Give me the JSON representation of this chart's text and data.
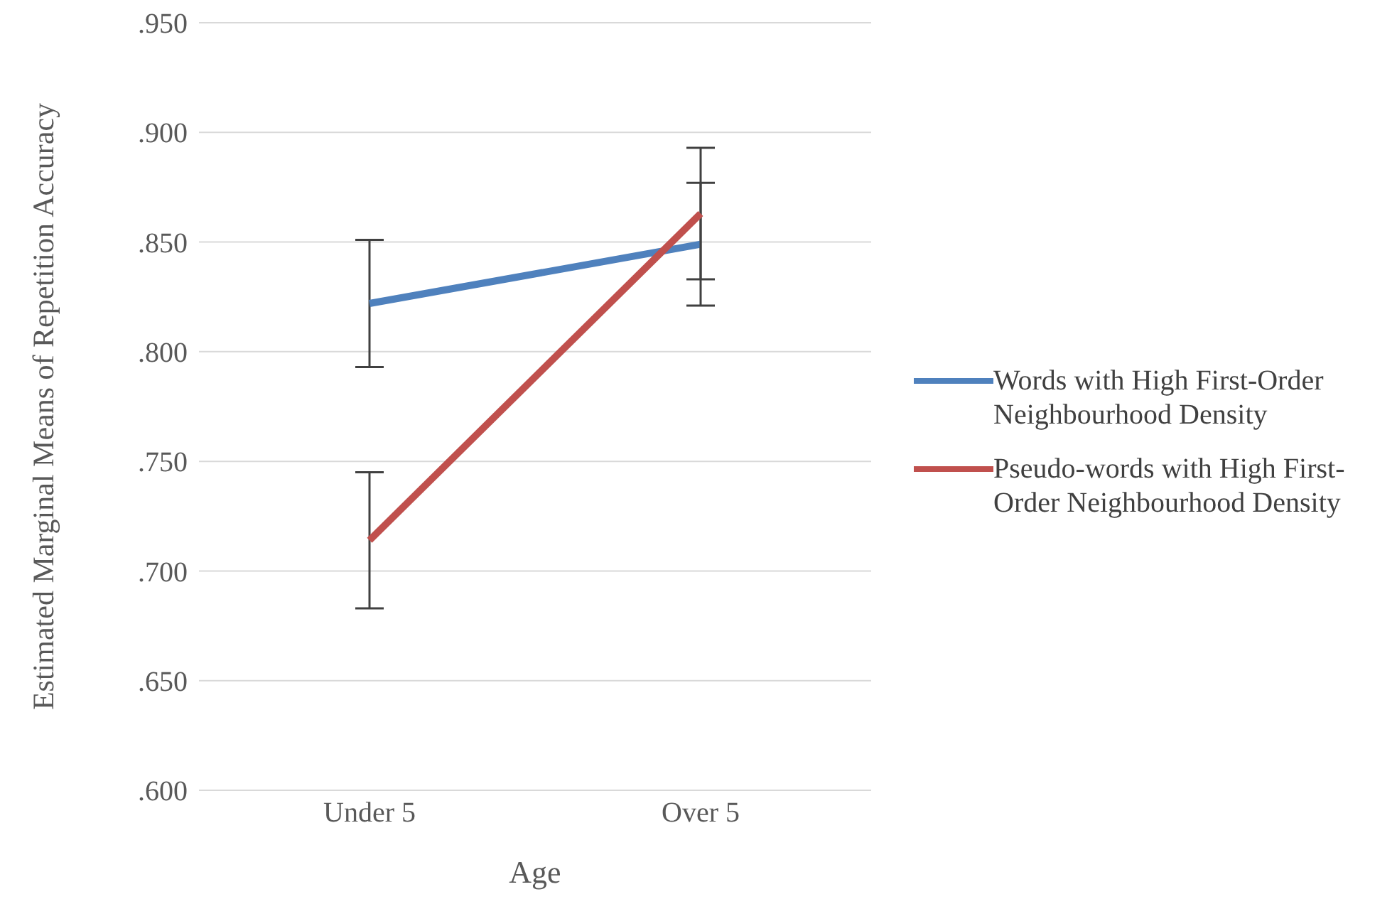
{
  "chart_data": {
    "type": "line",
    "xlabel": "Age",
    "ylabel": "Estimated Marginal Means of Repetition Accuracy",
    "categories": [
      "Under 5",
      "Over 5"
    ],
    "series": [
      {
        "name": "Words with High First-Order Neighbourhood Density",
        "color": "#4f81bd",
        "values": [
          0.822,
          0.849
        ],
        "errors": [
          0.029,
          0.028
        ]
      },
      {
        "name": "Pseudo-words with High First-Order Neighbourhood Density",
        "color": "#c0504d",
        "values": [
          0.714,
          0.863
        ],
        "errors": [
          0.031,
          0.03
        ]
      }
    ],
    "ylim": [
      0.6,
      0.95
    ],
    "yticks": [
      {
        "value": 0.6,
        "label": ".600"
      },
      {
        "value": 0.65,
        "label": ".650"
      },
      {
        "value": 0.7,
        "label": ".700"
      },
      {
        "value": 0.75,
        "label": ".750"
      },
      {
        "value": 0.8,
        "label": ".800"
      },
      {
        "value": 0.85,
        "label": ".850"
      },
      {
        "value": 0.9,
        "label": ".900"
      },
      {
        "value": 0.95,
        "label": ".950"
      }
    ],
    "grid": "y",
    "legend": "right",
    "marker": "none",
    "line_style": "solid"
  }
}
